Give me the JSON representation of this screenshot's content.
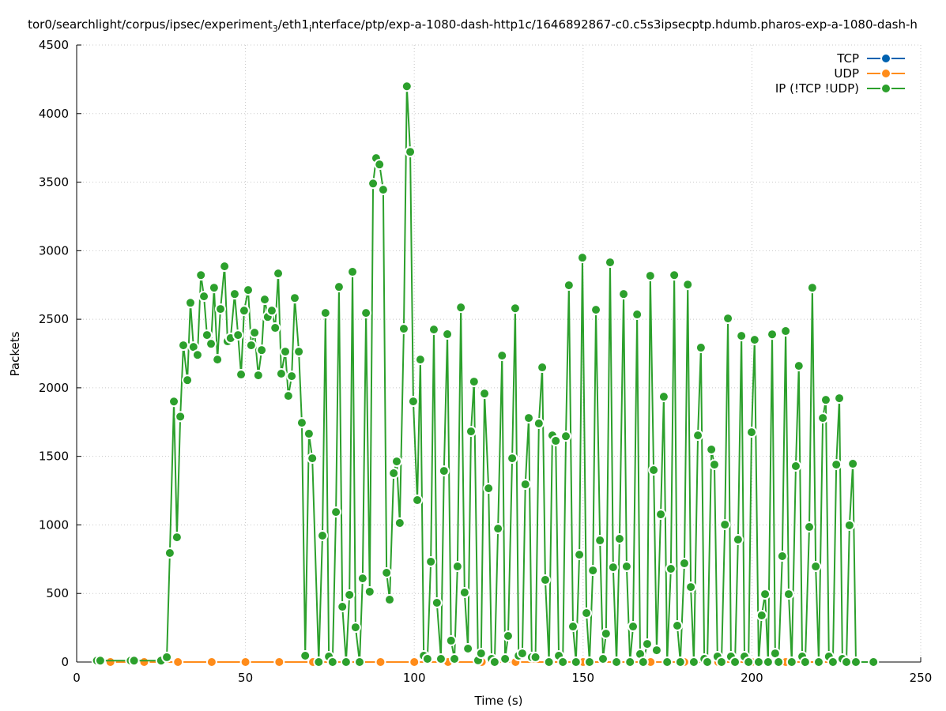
{
  "chart_data": {
    "type": "line",
    "title_parts": [
      {
        "text": "tor0/searchlight/corpus/ipsec/experiment",
        "sub": false
      },
      {
        "text": "3",
        "sub": true
      },
      {
        "text": "/eth1",
        "sub": false
      },
      {
        "text": "i",
        "sub": true
      },
      {
        "text": "nterface/ptp/exp-a-1080-dash-http1c/1646892867-c0.c5s3ipsecptp.hdumb.pharos-exp-a-1080-dash-h",
        "sub": false
      }
    ],
    "xlabel": "Time (s)",
    "ylabel": "Packets",
    "xlim": [
      0,
      250
    ],
    "ylim": [
      0,
      4500
    ],
    "xticks": [
      0,
      50,
      100,
      150,
      200,
      250
    ],
    "yticks": [
      0,
      500,
      1000,
      1500,
      2000,
      2500,
      3000,
      3500,
      4000,
      4500
    ],
    "grid": true,
    "legend": "upper right",
    "series": [
      {
        "name": "TCP",
        "color": "#0062b0",
        "x": [
          10,
          20,
          30,
          40,
          50,
          60,
          70,
          80,
          90,
          100,
          110,
          120,
          130,
          140,
          150,
          160,
          170,
          180,
          190,
          200,
          210,
          220,
          230
        ],
        "values": [
          0,
          0,
          0,
          0,
          0,
          0,
          0,
          0,
          0,
          0,
          0,
          0,
          0,
          0,
          0,
          0,
          0,
          0,
          0,
          0,
          0,
          0,
          0
        ]
      },
      {
        "name": "UDP",
        "color": "#ff8c1a",
        "x": [
          10,
          20,
          30,
          40,
          50,
          60,
          70,
          80,
          90,
          100,
          110,
          120,
          130,
          140,
          150,
          160,
          170,
          180,
          190,
          200,
          210,
          220,
          230
        ],
        "values": [
          0,
          0,
          0,
          0,
          0,
          0,
          0,
          0,
          0,
          0,
          0,
          0,
          0,
          0,
          0,
          0,
          0,
          0,
          0,
          0,
          0,
          0,
          0
        ]
      },
      {
        "name": "IP (!TCP  !UDP)",
        "color": "#2ca02c",
        "x": [
          6,
          7,
          16,
          17,
          25,
          26.7,
          27.6,
          28.8,
          29.7,
          30.7,
          31.6,
          32.8,
          33.7,
          34.6,
          35.8,
          36.8,
          37.7,
          38.6,
          39.8,
          40.7,
          41.7,
          42.6,
          43.8,
          44.7,
          45.6,
          46.8,
          47.8,
          48.7,
          49.6,
          50.8,
          51.7,
          52.7,
          53.8,
          54.8,
          55.7,
          56.6,
          57.8,
          58.8,
          59.7,
          60.6,
          61.8,
          62.7,
          63.7,
          64.6,
          65.8,
          66.7,
          67.7,
          68.8,
          69.8,
          71.7,
          72.8,
          73.7,
          74.7,
          75.8,
          76.8,
          77.7,
          78.7,
          79.8,
          80.8,
          81.7,
          82.6,
          83.8,
          84.7,
          85.7,
          86.8,
          87.8,
          88.7,
          89.7,
          90.8,
          91.8,
          92.7,
          93.9,
          94.8,
          95.7,
          96.9,
          97.8,
          98.8,
          99.7,
          100.9,
          101.8,
          102.8,
          103.9,
          104.9,
          105.8,
          106.7,
          107.9,
          108.8,
          109.8,
          110.9,
          111.9,
          112.8,
          113.8,
          114.9,
          115.9,
          116.8,
          117.7,
          118.9,
          119.8,
          120.8,
          122.0,
          122.9,
          123.8,
          124.8,
          126.0,
          126.9,
          127.8,
          129.0,
          129.9,
          130.9,
          132.0,
          132.9,
          133.9,
          134.8,
          135.9,
          136.9,
          137.9,
          138.8,
          139.9,
          140.9,
          141.9,
          142.8,
          144.0,
          144.9,
          145.8,
          147.0,
          147.9,
          148.9,
          149.8,
          151.0,
          151.9,
          152.9,
          153.8,
          155.0,
          155.9,
          156.8,
          158.0,
          158.9,
          159.9,
          160.8,
          162.0,
          162.9,
          163.9,
          164.8,
          166.0,
          166.9,
          167.8,
          169.0,
          169.9,
          170.9,
          171.8,
          173.0,
          173.9,
          174.9,
          176.0,
          177.0,
          177.9,
          178.8,
          180.0,
          181.0,
          181.9,
          182.8,
          184.0,
          184.9,
          185.9,
          186.8,
          188.0,
          188.9,
          189.8,
          191.0,
          192.0,
          192.9,
          193.8,
          195.0,
          195.9,
          196.9,
          197.8,
          199.0,
          199.9,
          200.8,
          202.0,
          202.9,
          203.9,
          204.8,
          206.0,
          206.9,
          207.9,
          209.0,
          210.0,
          210.9,
          211.8,
          213.0,
          213.9,
          214.9,
          215.8,
          217.0,
          217.9,
          218.9,
          219.8,
          221.0,
          221.9,
          222.8,
          224.0,
          225.0,
          225.9,
          226.8,
          228.0,
          228.9,
          229.9,
          230.8,
          236.0
        ],
        "values": [
          10,
          10,
          10,
          10,
          10,
          35,
          795,
          1900,
          910,
          1790,
          2310,
          2056,
          2620,
          2298,
          2240,
          2822,
          2667,
          2385,
          2321,
          2730,
          2206,
          2575,
          2886,
          2339,
          2362,
          2684,
          2385,
          2097,
          2563,
          2713,
          2310,
          2402,
          2091,
          2275,
          2644,
          2517,
          2563,
          2437,
          2834,
          2103,
          2264,
          1941,
          2085,
          2655,
          2264,
          1745,
          46,
          1665,
          1486,
          0,
          922,
          2546,
          40,
          0,
          1094,
          2736,
          403,
          0,
          490,
          2846,
          253,
          0,
          610,
          2546,
          513,
          3490,
          3675,
          3629,
          3445,
          651,
          455,
          1377,
          1463,
          1014,
          2431,
          4199,
          3721,
          1901,
          1181,
          2206,
          46,
          23,
          732,
          2425,
          432,
          23,
          1394,
          2391,
          156,
          23,
          697,
          2586,
          507,
          98,
          1682,
          2045,
          12,
          63,
          1958,
          1267,
          23,
          0,
          973,
          2235,
          23,
          190,
          1486,
          2580,
          46,
          63,
          1296,
          1780,
          35,
          35,
          1740,
          2149,
          599,
          0,
          1653,
          1613,
          46,
          0,
          1647,
          2748,
          259,
          0,
          783,
          2949,
          357,
          0,
          668,
          2569,
          887,
          23,
          207,
          2915,
          691,
          0,
          899,
          2684,
          697,
          0,
          259,
          2535,
          58,
          0,
          132,
          2817,
          1400,
          86,
          1077,
          1935,
          0,
          680,
          2822,
          265,
          0,
          720,
          2753,
          547,
          0,
          1653,
          2293,
          23,
          0,
          1550,
          1440,
          40,
          0,
          1002,
          2506,
          40,
          0,
          893,
          2379,
          40,
          0,
          1676,
          2350,
          0,
          340,
          495,
          0,
          2390,
          63,
          0,
          772,
          2414,
          495,
          0,
          1429,
          2160,
          40,
          0,
          985,
          2730,
          697,
          0,
          1780,
          1912,
          40,
          0,
          1440,
          1924,
          23,
          0,
          997,
          1446,
          0,
          0
        ]
      }
    ]
  }
}
